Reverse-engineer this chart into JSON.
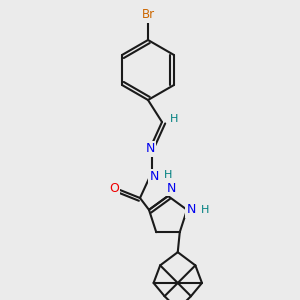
{
  "background_color": "#ebebeb",
  "bond_color": "#1a1a1a",
  "atom_colors": {
    "Br": "#cc6600",
    "N": "#0000ee",
    "O": "#ee0000",
    "H": "#008080",
    "C": "#1a1a1a"
  },
  "figsize": [
    3.0,
    3.0
  ],
  "dpi": 100
}
